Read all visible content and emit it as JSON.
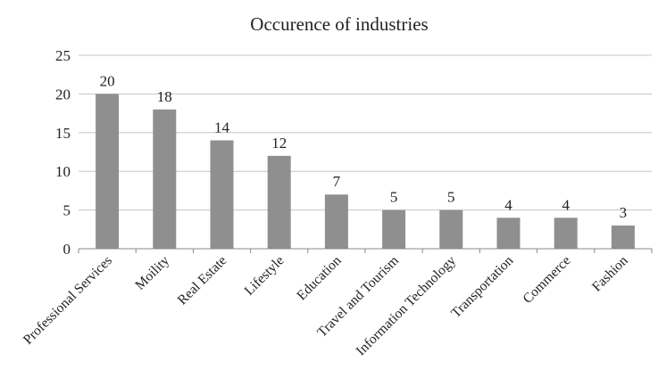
{
  "chart_data": {
    "type": "bar",
    "title": "Occurence of industries",
    "xlabel": "",
    "ylabel": "",
    "categories": [
      "Professional Services",
      "Moility",
      "Real Estate",
      "Lifestyle",
      "Education",
      "Travel and Tourism",
      "Information Technology",
      "Transportation",
      "Commerce",
      "Fashion"
    ],
    "values": [
      20,
      18,
      14,
      12,
      7,
      5,
      5,
      4,
      4,
      3
    ],
    "ylim": [
      0,
      25
    ],
    "yticks": [
      0,
      5,
      10,
      15,
      20,
      25
    ],
    "grid": true,
    "legend": "none",
    "data_labels": true,
    "colors": {
      "bar": "#8f8f8f",
      "grid": "#c6c6c6",
      "axis": "#8a8a8a",
      "text": "#222222"
    }
  }
}
